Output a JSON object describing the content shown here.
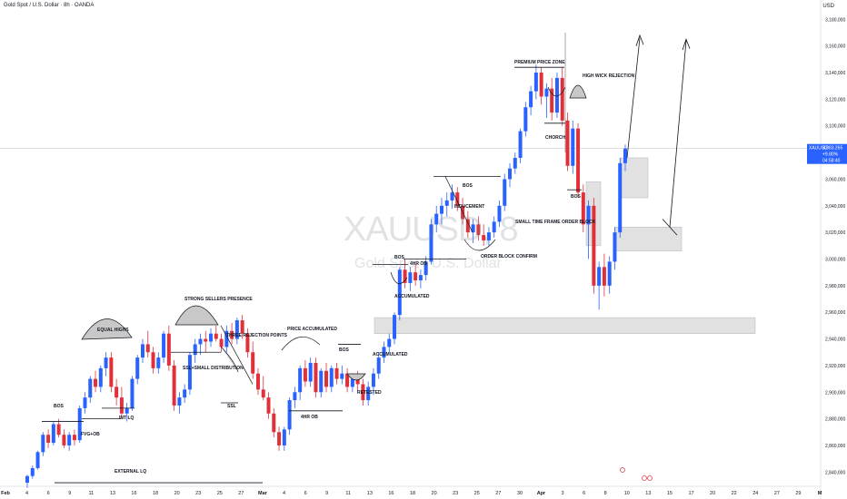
{
  "header": {
    "symbol_line": "Gold Spot / U.S. Dollar · 8h · OANDA",
    "currency": "USD"
  },
  "watermark": {
    "ticker": "XAUUSD, 8",
    "name": "Gold Spot / U.S. Dollar"
  },
  "price_tag": {
    "symbol": "XAUUSD",
    "price": "3,083.265",
    "change": "+9.80%",
    "countdown": "04:58:40"
  },
  "colors": {
    "up": "#2962ff",
    "down": "#e0313b",
    "zone": "#d9d9d9",
    "text": "#131722"
  },
  "chart_data": {
    "type": "candlestick",
    "title": "",
    "ylim": [
      2830,
      3185
    ],
    "y_ticks": [
      2840,
      2860,
      2880,
      2900,
      2920,
      2940,
      2960,
      2980,
      3000,
      3020,
      3040,
      3060,
      3080,
      3100,
      3120,
      3140,
      3160,
      3180
    ],
    "y_tick_labels": [
      "2,840,000",
      "2,860,000",
      "2,880,000",
      "2,900,000",
      "2,920,000",
      "2,940,000",
      "2,960,000",
      "2,980,000",
      "3,000,000",
      "3,020,000",
      "3,040,000",
      "3,060,000",
      "3,080,000",
      "3,100,000",
      "3,120,000",
      "3,140,000",
      "3,160,000",
      "3,180,000"
    ],
    "x_labels": [
      "Feb",
      "4",
      "6",
      "9",
      "11",
      "13",
      "16",
      "18",
      "20",
      "23",
      "25",
      "27",
      "Mar",
      "4",
      "6",
      "9",
      "11",
      "13",
      "16",
      "18",
      "20",
      "23",
      "25",
      "27",
      "30",
      "Apr",
      "3",
      "6",
      "8",
      "10",
      "13",
      "15",
      "17",
      "20",
      "22",
      "24",
      "27",
      "29",
      "M"
    ],
    "candles_ohlc": [
      [
        2832,
        2838,
        2828,
        2837
      ],
      [
        2837,
        2845,
        2835,
        2843
      ],
      [
        2843,
        2856,
        2842,
        2855
      ],
      [
        2855,
        2870,
        2852,
        2868
      ],
      [
        2868,
        2872,
        2858,
        2862
      ],
      [
        2862,
        2878,
        2860,
        2876
      ],
      [
        2876,
        2880,
        2866,
        2868
      ],
      [
        2868,
        2872,
        2858,
        2860
      ],
      [
        2860,
        2870,
        2856,
        2868
      ],
      [
        2868,
        2872,
        2860,
        2864
      ],
      [
        2864,
        2890,
        2862,
        2888
      ],
      [
        2888,
        2900,
        2884,
        2896
      ],
      [
        2896,
        2912,
        2892,
        2910
      ],
      [
        2910,
        2916,
        2900,
        2904
      ],
      [
        2904,
        2920,
        2900,
        2918
      ],
      [
        2918,
        2930,
        2912,
        2926
      ],
      [
        2926,
        2930,
        2900,
        2904
      ],
      [
        2904,
        2910,
        2890,
        2896
      ],
      [
        2896,
        2904,
        2880,
        2884
      ],
      [
        2884,
        2892,
        2878,
        2888
      ],
      [
        2888,
        2912,
        2886,
        2910
      ],
      [
        2910,
        2928,
        2906,
        2926
      ],
      [
        2926,
        2940,
        2922,
        2936
      ],
      [
        2936,
        2946,
        2926,
        2930
      ],
      [
        2930,
        2934,
        2914,
        2918
      ],
      [
        2918,
        2930,
        2914,
        2926
      ],
      [
        2926,
        2946,
        2922,
        2944
      ],
      [
        2944,
        2950,
        2916,
        2920
      ],
      [
        2920,
        2924,
        2886,
        2890
      ],
      [
        2890,
        2900,
        2884,
        2896
      ],
      [
        2896,
        2906,
        2892,
        2902
      ],
      [
        2902,
        2930,
        2898,
        2928
      ],
      [
        2928,
        2940,
        2922,
        2936
      ],
      [
        2936,
        2944,
        2928,
        2940
      ],
      [
        2940,
        2946,
        2930,
        2938
      ],
      [
        2938,
        2948,
        2934,
        2944
      ],
      [
        2944,
        2950,
        2938,
        2940
      ],
      [
        2940,
        2944,
        2930,
        2934
      ],
      [
        2934,
        2950,
        2930,
        2946
      ],
      [
        2946,
        2952,
        2936,
        2940
      ],
      [
        2940,
        2956,
        2936,
        2954
      ],
      [
        2954,
        2958,
        2940,
        2944
      ],
      [
        2944,
        2948,
        2926,
        2930
      ],
      [
        2930,
        2938,
        2910,
        2914
      ],
      [
        2914,
        2918,
        2898,
        2902
      ],
      [
        2902,
        2912,
        2894,
        2896
      ],
      [
        2896,
        2900,
        2880,
        2884
      ],
      [
        2884,
        2888,
        2866,
        2870
      ],
      [
        2870,
        2874,
        2856,
        2860
      ],
      [
        2860,
        2874,
        2856,
        2872
      ],
      [
        2872,
        2896,
        2868,
        2894
      ],
      [
        2894,
        2904,
        2888,
        2900
      ],
      [
        2900,
        2920,
        2894,
        2918
      ],
      [
        2918,
        2924,
        2904,
        2908
      ],
      [
        2908,
        2926,
        2904,
        2922
      ],
      [
        2922,
        2926,
        2896,
        2900
      ],
      [
        2900,
        2918,
        2896,
        2916
      ],
      [
        2916,
        2922,
        2900,
        2904
      ],
      [
        2904,
        2920,
        2900,
        2918
      ],
      [
        2918,
        2922,
        2906,
        2910
      ],
      [
        2910,
        2920,
        2906,
        2914
      ],
      [
        2914,
        2918,
        2900,
        2904
      ],
      [
        2904,
        2914,
        2900,
        2910
      ],
      [
        2910,
        2916,
        2900,
        2906
      ],
      [
        2906,
        2910,
        2890,
        2894
      ],
      [
        2894,
        2908,
        2890,
        2904
      ],
      [
        2904,
        2918,
        2898,
        2914
      ],
      [
        2914,
        2930,
        2910,
        2926
      ],
      [
        2926,
        2938,
        2922,
        2934
      ],
      [
        2934,
        2944,
        2930,
        2940
      ],
      [
        2940,
        2960,
        2936,
        2958
      ],
      [
        2958,
        2994,
        2954,
        2992
      ],
      [
        2992,
        3000,
        2978,
        2982
      ],
      [
        2982,
        2994,
        2976,
        2990
      ],
      [
        2990,
        2996,
        2980,
        2984
      ],
      [
        2984,
        2992,
        2978,
        2988
      ],
      [
        2988,
        3002,
        2984,
        2998
      ],
      [
        2998,
        3030,
        2996,
        3026
      ],
      [
        3026,
        3040,
        3020,
        3034
      ],
      [
        3034,
        3046,
        3026,
        3040
      ],
      [
        3040,
        3050,
        3032,
        3044
      ],
      [
        3044,
        3056,
        3038,
        3050
      ],
      [
        3050,
        3054,
        3036,
        3040
      ],
      [
        3040,
        3046,
        3026,
        3030
      ],
      [
        3030,
        3036,
        3016,
        3020
      ],
      [
        3020,
        3030,
        3012,
        3026
      ],
      [
        3026,
        3032,
        3014,
        3018
      ],
      [
        3018,
        3026,
        3010,
        3014
      ],
      [
        3014,
        3024,
        3010,
        3020
      ],
      [
        3020,
        3032,
        3016,
        3028
      ],
      [
        3028,
        3044,
        3024,
        3040
      ],
      [
        3040,
        3064,
        3036,
        3060
      ],
      [
        3060,
        3072,
        3054,
        3068
      ],
      [
        3068,
        3080,
        3064,
        3076
      ],
      [
        3076,
        3098,
        3072,
        3096
      ],
      [
        3096,
        3118,
        3092,
        3114
      ],
      [
        3114,
        3130,
        3108,
        3126
      ],
      [
        3126,
        3146,
        3120,
        3140
      ],
      [
        3140,
        3144,
        3116,
        3122
      ],
      [
        3122,
        3132,
        3106,
        3128
      ],
      [
        3128,
        3136,
        3104,
        3110
      ],
      [
        3110,
        3140,
        3106,
        3136
      ],
      [
        3136,
        3144,
        3100,
        3104
      ],
      [
        3104,
        3110,
        3066,
        3070
      ],
      [
        3070,
        3104,
        3064,
        3098
      ],
      [
        3098,
        3102,
        3046,
        3050
      ],
      [
        3050,
        3056,
        3020,
        3026
      ],
      [
        3026,
        3044,
        3000,
        3040
      ],
      [
        3040,
        3046,
        2974,
        2980
      ],
      [
        2980,
        2998,
        2962,
        2994
      ],
      [
        2994,
        3004,
        2972,
        2980
      ],
      [
        2980,
        3002,
        2974,
        2998
      ],
      [
        2998,
        3024,
        2992,
        3020
      ],
      [
        3020,
        3076,
        3016,
        3072
      ],
      [
        3072,
        3086,
        3066,
        3083
      ]
    ],
    "annotations": [
      "EQUAL HIGHS",
      "STRONG SELLERS PRESENCE",
      "THREE REJECTION POINTS",
      "SSL+SMALL DISTRIBUTION",
      "PRICE ACCUMULATED",
      "BOS",
      "INT LQ",
      "FVG+OB",
      "SSL",
      "4HR OB",
      "RETESTED",
      "ACCUMULATED",
      "INDUCEMENT",
      "ORDER BLOCK CONFIRM",
      "PREMIUM PRICE ZONE",
      "HIGH WICK REJECTION",
      "CHORCH",
      "SMALL TIME FRAME ORDER BLOCK",
      "EXTERNAL LQ"
    ]
  }
}
